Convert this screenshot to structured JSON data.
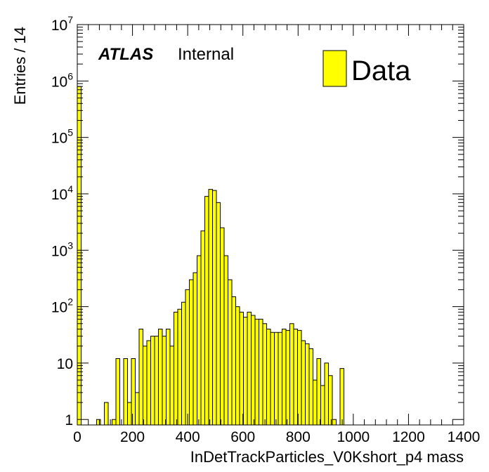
{
  "colors": {
    "fill": "#ffff00",
    "line": "#000000",
    "background": "#ffffff"
  },
  "chart_data": {
    "type": "bar",
    "histogram": true,
    "bin_width": 14,
    "xlabel": "InDetTrackParticles_V0Kshort_p4 mass",
    "ylabel": "Entries / 14",
    "xlim": [
      0,
      1400
    ],
    "ylim": [
      0.8,
      10000000
    ],
    "y_scale": "log",
    "x_ticks": [
      "0",
      "200",
      "400",
      "600",
      "800",
      "1000",
      "1200",
      "1400"
    ],
    "y_ticks": [
      {
        "base": "1",
        "exp": ""
      },
      {
        "base": "10",
        "exp": ""
      },
      {
        "base": "10",
        "exp": "2"
      },
      {
        "base": "10",
        "exp": "3"
      },
      {
        "base": "10",
        "exp": "4"
      },
      {
        "base": "10",
        "exp": "5"
      },
      {
        "base": "10",
        "exp": "6"
      },
      {
        "base": "10",
        "exp": "7"
      }
    ],
    "grid": false,
    "legend": {
      "position": "top-right",
      "entries": [
        "Data"
      ]
    },
    "label_atlas": "ATLAS",
    "label_status": "Internal",
    "bin_low_edges": [
      0,
      70,
      98,
      126,
      140,
      168,
      182,
      196,
      210,
      224,
      238,
      252,
      266,
      280,
      294,
      308,
      322,
      336,
      350,
      364,
      378,
      392,
      406,
      420,
      434,
      448,
      462,
      476,
      490,
      504,
      518,
      532,
      546,
      560,
      574,
      588,
      602,
      616,
      630,
      644,
      658,
      672,
      686,
      700,
      714,
      728,
      742,
      756,
      770,
      784,
      798,
      812,
      826,
      840,
      854,
      868,
      882,
      896,
      910,
      924,
      952
    ],
    "values": [
      800000,
      1,
      2,
      1,
      12,
      12,
      2,
      12,
      3,
      40,
      20,
      25,
      30,
      30,
      40,
      30,
      40,
      20,
      80,
      90,
      120,
      200,
      300,
      400,
      800,
      2200,
      9000,
      12000,
      11500,
      7000,
      2500,
      800,
      300,
      150,
      100,
      80,
      65,
      80,
      70,
      60,
      60,
      50,
      40,
      35,
      35,
      35,
      40,
      38,
      50,
      40,
      38,
      25,
      22,
      18,
      5,
      12,
      4,
      10,
      6,
      1,
      8
    ]
  }
}
